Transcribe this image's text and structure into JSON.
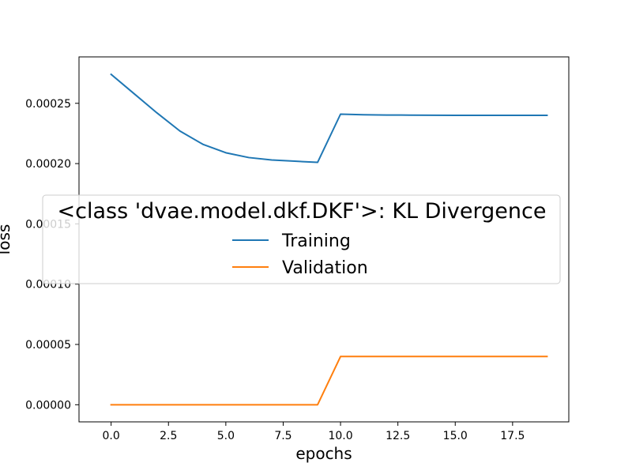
{
  "chart_data": {
    "type": "line",
    "xlabel": "epochs",
    "ylabel": "loss",
    "xlim": [
      -1.4,
      19.95
    ],
    "ylim": [
      -1.42e-05,
      0.0002885
    ],
    "xticks": [
      0.0,
      2.5,
      5.0,
      7.5,
      10.0,
      12.5,
      15.0,
      17.5
    ],
    "xtick_labels": [
      "0.0",
      "2.5",
      "5.0",
      "7.5",
      "10.0",
      "12.5",
      "15.0",
      "17.5"
    ],
    "yticks": [
      0.0,
      5e-05,
      0.0001,
      0.00015,
      0.0002,
      0.00025
    ],
    "ytick_labels": [
      "0.00000",
      "0.00005",
      "0.00010",
      "0.00015",
      "0.00020",
      "0.00025"
    ],
    "legend": {
      "title": "<class 'dvae.model.dkf.DKF'>: KL Divergence",
      "placement": "center"
    },
    "x": [
      0,
      1,
      2,
      3,
      4,
      5,
      6,
      7,
      8,
      9,
      10,
      11,
      12,
      13,
      14,
      15,
      16,
      17,
      18,
      19
    ],
    "series": [
      {
        "name": "Training",
        "color": "#1f77b4",
        "values": [
          0.000274,
          0.000258,
          0.000242,
          0.000227,
          0.000216,
          0.000209,
          0.000205,
          0.000203,
          0.000202,
          0.000201,
          0.000241,
          0.0002405,
          0.0002403,
          0.0002402,
          0.0002401,
          0.00024,
          0.00024,
          0.00024,
          0.00024,
          0.00024
        ]
      },
      {
        "name": "Validation",
        "color": "#ff7f0e",
        "values": [
          0,
          0,
          0,
          0,
          0,
          0,
          0,
          0,
          0,
          0,
          4e-05,
          4e-05,
          4e-05,
          4e-05,
          4e-05,
          4e-05,
          4e-05,
          4e-05,
          4e-05,
          4e-05
        ]
      }
    ]
  }
}
